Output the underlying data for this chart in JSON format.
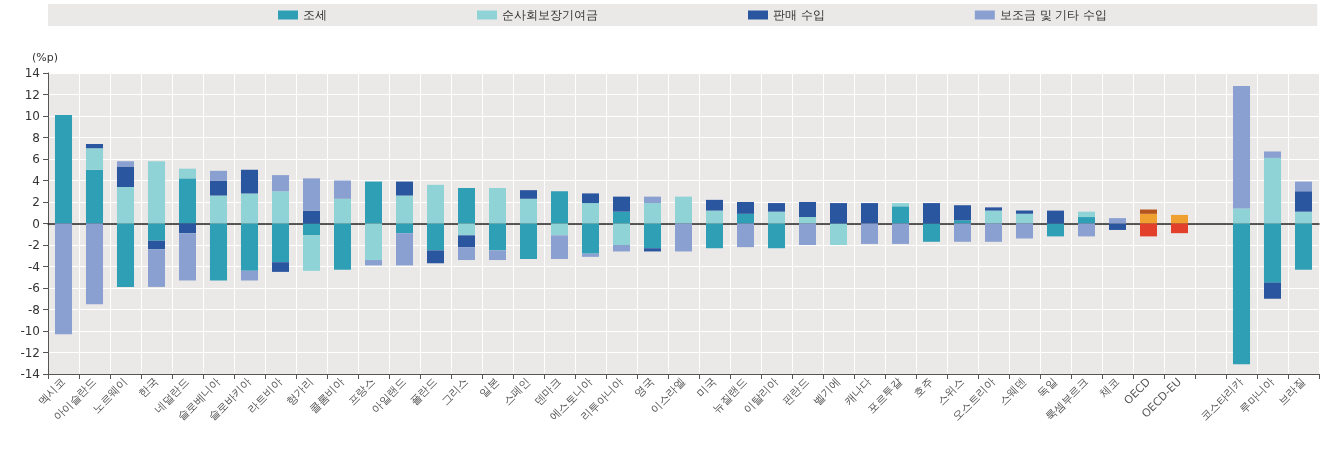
{
  "chart_data": {
    "type": "bar",
    "stacked": true,
    "ylabel": "(%p)",
    "ylim": [
      -14,
      14
    ],
    "yticks": [
      -14,
      -12,
      -10,
      -8,
      -6,
      -4,
      -2,
      0,
      2,
      4,
      6,
      8,
      10,
      12,
      14
    ],
    "grid": true,
    "legend": "top",
    "categories": [
      "멕시코",
      "아이슬란드",
      "노르웨이",
      "한국",
      "네덜란드",
      "슬로베니아",
      "슬로바키아",
      "라트비아",
      "헝가리",
      "콜롬비아",
      "프랑스",
      "아일랜드",
      "폴란드",
      "그리스",
      "일본",
      "스페인",
      "덴마크",
      "에스토니아",
      "리투아니아",
      "영국",
      "이스라엘",
      "미국",
      "뉴질랜드",
      "이탈리아",
      "핀란드",
      "벨기에",
      "캐나다",
      "포르투갈",
      "호주",
      "스위스",
      "오스트리아",
      "스웨덴",
      "독일",
      "룩셈부르크",
      "체코",
      "OECD",
      "OECD-EU",
      null,
      "코스타리카",
      "루마니아",
      "브라질"
    ],
    "series": [
      {
        "name": "조세",
        "color": "#2e9fb5",
        "colors": [
          "#2e9fb5",
          "#2e9fb5",
          "#2e9fb5",
          "#2e9fb5",
          "#2e9fb5",
          "#2e9fb5",
          "#2e9fb5",
          "#2e9fb5",
          "#2e9fb5",
          "#2e9fb5",
          "#2e9fb5",
          "#2e9fb5",
          "#2e9fb5",
          "#2e9fb5",
          "#2e9fb5",
          "#2e9fb5",
          "#2e9fb5",
          "#2e9fb5",
          "#2e9fb5",
          "#2e9fb5",
          "#2e9fb5",
          "#2e9fb5",
          "#2e9fb5",
          "#2e9fb5",
          "#2e9fb5",
          "#2e9fb5",
          "#2e9fb5",
          "#2e9fb5",
          "#2e9fb5",
          "#2e9fb5",
          "#2e9fb5",
          "#2e9fb5",
          "#2e9fb5",
          "#2e9fb5",
          "#2e9fb5",
          "#f0a030",
          "#f0a030",
          "#2e9fb5",
          "#2e9fb5",
          "#2e9fb5",
          "#2e9fb5"
        ],
        "values": [
          10.1,
          5.0,
          -5.9,
          -1.6,
          4.2,
          -5.3,
          -4.4,
          -3.6,
          -1.1,
          -4.3,
          3.9,
          -0.9,
          -2.5,
          3.3,
          -2.5,
          -3.3,
          3.0,
          -2.8,
          1.1,
          -2.3,
          null,
          -2.3,
          0.9,
          -2.3,
          null,
          null,
          null,
          1.6,
          -1.7,
          0.3,
          null,
          null,
          -1.2,
          0.6,
          null,
          0.9,
          0.8,
          null,
          -13.1,
          -5.5,
          -4.3
        ]
      },
      {
        "name": "순사회보장기여금",
        "color": "#8fd3d6",
        "values": [
          null,
          2.0,
          3.4,
          5.8,
          0.9,
          2.6,
          2.8,
          3.0,
          -3.3,
          2.3,
          -3.4,
          2.6,
          3.6,
          -1.1,
          3.3,
          2.3,
          -1.1,
          1.9,
          -2.0,
          1.9,
          2.5,
          1.2,
          null,
          1.1,
          0.6,
          -2.0,
          null,
          0.3,
          null,
          null,
          1.2,
          0.9,
          null,
          0.5,
          null,
          null,
          null,
          null,
          1.4,
          6.1,
          1.1
        ]
      },
      {
        "name": "판매 수입",
        "color": "#2a56a0",
        "colors": [
          "#2a56a0",
          "#2a56a0",
          "#2a56a0",
          "#2a56a0",
          "#2a56a0",
          "#2a56a0",
          "#2a56a0",
          "#2a56a0",
          "#2a56a0",
          "#2a56a0",
          "#2a56a0",
          "#2a56a0",
          "#2a56a0",
          "#2a56a0",
          "#2a56a0",
          "#2a56a0",
          "#2a56a0",
          "#2a56a0",
          "#2a56a0",
          "#2a56a0",
          "#2a56a0",
          "#2a56a0",
          "#2a56a0",
          "#2a56a0",
          "#2a56a0",
          "#2a56a0",
          "#2a56a0",
          "#2a56a0",
          "#2a56a0",
          "#2a56a0",
          "#2a56a0",
          "#2a56a0",
          "#2a56a0",
          "#2a56a0",
          "#2a56a0",
          "#b5541c",
          "#b5541c",
          "#2a56a0",
          "#2a56a0",
          "#2a56a0",
          "#2a56a0"
        ],
        "values": [
          null,
          0.4,
          1.9,
          -0.8,
          -0.9,
          1.4,
          2.2,
          -0.9,
          1.2,
          null,
          null,
          1.3,
          -1.2,
          -1.1,
          null,
          0.8,
          null,
          0.9,
          1.4,
          -0.3,
          null,
          1.0,
          1.1,
          0.8,
          1.4,
          1.9,
          1.9,
          null,
          1.9,
          1.4,
          0.3,
          0.3,
          1.2,
          null,
          -0.6,
          0.4,
          null,
          null,
          null,
          -1.5,
          1.9
        ]
      },
      {
        "name": "보조금 및 기타 수입",
        "color": "#8aa0d0",
        "colors": [
          "#8aa0d0",
          "#8aa0d0",
          "#8aa0d0",
          "#8aa0d0",
          "#8aa0d0",
          "#8aa0d0",
          "#8aa0d0",
          "#8aa0d0",
          "#8aa0d0",
          "#8aa0d0",
          "#8aa0d0",
          "#8aa0d0",
          "#8aa0d0",
          "#8aa0d0",
          "#8aa0d0",
          "#8aa0d0",
          "#8aa0d0",
          "#8aa0d0",
          "#8aa0d0",
          "#8aa0d0",
          "#8aa0d0",
          "#8aa0d0",
          "#8aa0d0",
          "#8aa0d0",
          "#8aa0d0",
          "#8aa0d0",
          "#8aa0d0",
          "#8aa0d0",
          "#8aa0d0",
          "#8aa0d0",
          "#8aa0d0",
          "#8aa0d0",
          "#8aa0d0",
          "#8aa0d0",
          "#8aa0d0",
          "#e2402a",
          "#e2402a",
          "#8aa0d0",
          "#8aa0d0",
          "#8aa0d0",
          "#8aa0d0"
        ],
        "values": [
          -10.3,
          -7.5,
          0.5,
          -3.5,
          -4.4,
          0.9,
          -0.9,
          1.5,
          3.0,
          1.7,
          -0.5,
          -3.0,
          null,
          -1.2,
          -0.9,
          null,
          -2.2,
          -0.3,
          -0.6,
          0.6,
          -2.6,
          null,
          -2.2,
          null,
          -2.0,
          null,
          -1.9,
          -1.9,
          null,
          -1.7,
          -1.7,
          -1.4,
          null,
          -1.2,
          0.5,
          -1.2,
          -0.9,
          null,
          11.4,
          0.6,
          0.9
        ]
      }
    ]
  }
}
